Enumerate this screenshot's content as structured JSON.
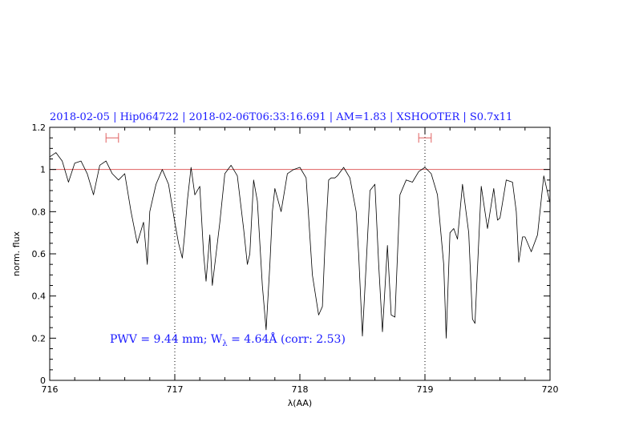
{
  "chart_data": {
    "type": "line",
    "title": "2018-02-05 | Hip064722 | 2018-02-06T06:33:16.691 | AM=1.83 | XSHOOTER | S0.7x11",
    "xlabel": "λ(AA)",
    "ylabel": "norm. flux",
    "xlim": [
      716,
      720
    ],
    "ylim": [
      0,
      1.2
    ],
    "x_ticks": [
      "716",
      "717",
      "718",
      "719",
      "720"
    ],
    "y_ticks": [
      "0",
      "0.2",
      "0.4",
      "0.6",
      "0.8",
      "1",
      "1.2"
    ],
    "reference_line_y": 1.0,
    "vertical_markers_x": [
      717.0,
      719.0
    ],
    "error_bars": [
      {
        "x_center": 716.5,
        "x_low": 716.45,
        "x_high": 716.55,
        "y": 1.15
      },
      {
        "x_center": 719.0,
        "x_low": 718.95,
        "x_high": 719.05,
        "y": 1.15
      }
    ],
    "annotation": {
      "pwv_text": "PWV = 9.44 mm; W",
      "lambda_sub": "λ",
      "width_text": " = 4.64Å (corr: 2.53)"
    },
    "colors": {
      "spectrum": "#000000",
      "reference": "#e06060",
      "text": "#1a1aff",
      "error_bar": "#e06060"
    },
    "series": [
      {
        "x": [
          716.0,
          716.05,
          716.1,
          716.15,
          716.2,
          716.25,
          716.3,
          716.35,
          716.4,
          716.45,
          716.5,
          716.55,
          716.6,
          716.65,
          716.7,
          716.75,
          716.78,
          716.8,
          716.85,
          716.9,
          716.95,
          717.0,
          717.03,
          717.06,
          717.08,
          717.1,
          717.13,
          717.16,
          717.2,
          717.23,
          717.25,
          717.28,
          717.3,
          717.33,
          717.36,
          717.4,
          717.45,
          717.5,
          717.55,
          717.58,
          717.6,
          717.63,
          717.66,
          717.7,
          717.73,
          717.76,
          717.78,
          717.8,
          717.85,
          717.9,
          717.95,
          718.0,
          718.05,
          718.1,
          718.15,
          718.18,
          718.2,
          718.23,
          718.25,
          718.28,
          718.3,
          718.35,
          718.4,
          718.45,
          718.47,
          718.5,
          718.53,
          718.56,
          718.6,
          718.63,
          718.66,
          718.7,
          718.73,
          718.76,
          718.8,
          718.85,
          718.9,
          718.95,
          719.0,
          719.05,
          719.1,
          719.15,
          719.17,
          719.2,
          719.23,
          719.26,
          719.3,
          719.35,
          719.38,
          719.4,
          719.45,
          719.5,
          719.55,
          719.58,
          719.6,
          719.65,
          719.7,
          719.73,
          719.75,
          719.78,
          719.8,
          719.85,
          719.9,
          719.95,
          720.0
        ],
        "y": [
          1.06,
          1.08,
          1.04,
          0.94,
          1.03,
          1.04,
          0.98,
          0.88,
          1.02,
          1.04,
          0.98,
          0.95,
          0.98,
          0.8,
          0.65,
          0.75,
          0.55,
          0.8,
          0.93,
          1.0,
          0.93,
          0.75,
          0.65,
          0.58,
          0.7,
          0.85,
          1.01,
          0.88,
          0.92,
          0.6,
          0.47,
          0.69,
          0.45,
          0.6,
          0.75,
          0.98,
          1.02,
          0.97,
          0.72,
          0.55,
          0.6,
          0.95,
          0.85,
          0.45,
          0.24,
          0.55,
          0.8,
          0.91,
          0.8,
          0.98,
          1.0,
          1.01,
          0.96,
          0.5,
          0.31,
          0.35,
          0.63,
          0.95,
          0.96,
          0.96,
          0.97,
          1.01,
          0.96,
          0.8,
          0.6,
          0.21,
          0.55,
          0.9,
          0.93,
          0.55,
          0.23,
          0.64,
          0.31,
          0.3,
          0.88,
          0.95,
          0.94,
          0.99,
          1.01,
          0.98,
          0.88,
          0.55,
          0.2,
          0.7,
          0.72,
          0.67,
          0.93,
          0.7,
          0.29,
          0.27,
          0.92,
          0.72,
          0.91,
          0.76,
          0.77,
          0.95,
          0.94,
          0.8,
          0.56,
          0.68,
          0.68,
          0.61,
          0.69,
          0.97,
          0.84
        ]
      }
    ]
  }
}
